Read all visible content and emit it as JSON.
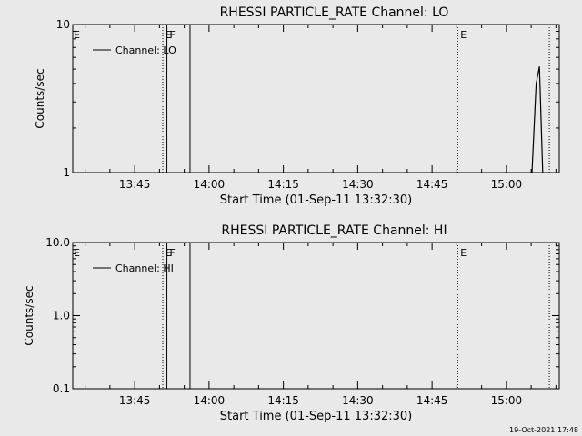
{
  "footer": {
    "timestamp": "19-Oct-2021 17:48"
  },
  "chart_data": [
    {
      "type": "line",
      "title": "RHESSI PARTICLE_RATE Channel: LO",
      "xlabel": "Start Time (01-Sep-11 13:32:30)",
      "ylabel": "Counts/sec",
      "yscale": "log",
      "ylim": [
        1,
        10
      ],
      "yticks": [
        1,
        10
      ],
      "ytick_labels": [
        "1",
        "10"
      ],
      "xlim": [
        "13:32:30",
        "15:10:40"
      ],
      "xticks": [
        "13:45",
        "14:00",
        "14:15",
        "14:30",
        "14:45",
        "15:00"
      ],
      "legend": {
        "placement": "top-left",
        "entries": [
          "Channel: LO"
        ]
      },
      "grid": false,
      "markers": [
        {
          "time": "13:50:40",
          "label": "E",
          "style": "dotted"
        },
        {
          "time": "13:51:30",
          "label": "F",
          "style": "solid"
        },
        {
          "time": "13:56:10",
          "label": "",
          "style": "solid"
        },
        {
          "time": "14:50:10",
          "label": "E",
          "style": "dotted"
        },
        {
          "time": "15:08:40",
          "label": "",
          "style": "dotted"
        }
      ],
      "edge_markers": [
        {
          "label": "E",
          "side": "left"
        }
      ],
      "series": [
        {
          "name": "Channel: LO",
          "x": [
            "15:05:10",
            "15:06:00",
            "15:06:40",
            "15:07:20"
          ],
          "y": [
            1.0,
            4.0,
            5.2,
            1.0
          ]
        }
      ]
    },
    {
      "type": "line",
      "title": "RHESSI PARTICLE_RATE Channel: HI",
      "xlabel": "Start Time (01-Sep-11 13:32:30)",
      "ylabel": "Counts/sec",
      "yscale": "log",
      "ylim": [
        0.1,
        10
      ],
      "yticks": [
        0.1,
        1,
        10
      ],
      "ytick_labels": [
        "0.1",
        "1.0",
        "10.0"
      ],
      "xlim": [
        "13:32:30",
        "15:10:40"
      ],
      "xticks": [
        "13:45",
        "14:00",
        "14:15",
        "14:30",
        "14:45",
        "15:00"
      ],
      "legend": {
        "placement": "top-left",
        "entries": [
          "Channel: HI"
        ]
      },
      "grid": false,
      "markers": [
        {
          "time": "13:50:40",
          "label": "E",
          "style": "dotted"
        },
        {
          "time": "13:51:30",
          "label": "F",
          "style": "solid"
        },
        {
          "time": "13:56:10",
          "label": "",
          "style": "solid"
        },
        {
          "time": "14:50:10",
          "label": "E",
          "style": "dotted"
        },
        {
          "time": "15:08:40",
          "label": "",
          "style": "dotted"
        }
      ],
      "edge_markers": [
        {
          "label": "E",
          "side": "left"
        }
      ],
      "series": [
        {
          "name": "Channel: HI",
          "x": [],
          "y": []
        }
      ]
    }
  ]
}
